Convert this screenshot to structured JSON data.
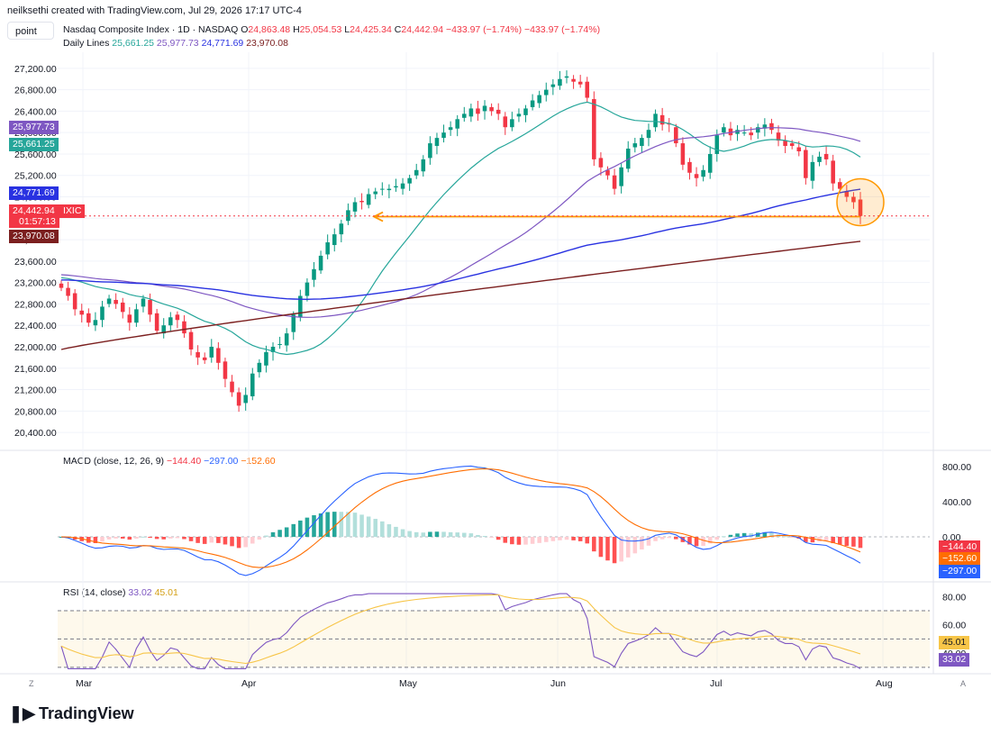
{
  "credit": "neilksethi created with TradingView.com, Jul 29, 2026 17:17 UTC-4",
  "symbol_box": "point",
  "header": {
    "title": "Nasdaq Composite Index · 1D · NASDAQ",
    "ohlc": {
      "o_label": "O",
      "o": "24,863.48",
      "h_label": "H",
      "h": "25,054.53",
      "l_label": "L",
      "l": "24,425.34",
      "c_label": "C",
      "c": "24,442.94",
      "chg": "−433.97 (−1.74%)",
      "chg2": "−433.97 (−1.74%)"
    },
    "lines_label": "Daily Lines",
    "lines_values": [
      "25,661.25",
      "25,977.73",
      "24,771.69",
      "23,970.08"
    ]
  },
  "price_tags": {
    "t1": "25,977.73",
    "t2": "25,661.25",
    "t3": "24,771.69",
    "t4": "24,442.94",
    "t4b": "01:57:13",
    "t4sym": "IXIC",
    "t5": "23,970.08"
  },
  "macd_header": {
    "label": "MACD (close, 12, 26, 9)",
    "v1": "−144.40",
    "v2": "−297.00",
    "v3": "−152.60"
  },
  "macd_tags": {
    "a": "−144.40",
    "b": "−152.60",
    "c": "−297.00"
  },
  "rsi_header": {
    "label": "RSI (14, close)",
    "v1": "33.02",
    "v2": "45.01"
  },
  "rsi_tags": {
    "a": "45.01",
    "b": "33.02"
  },
  "corner_left": "Z",
  "corner_right": "A",
  "logo_text": "TradingView",
  "colors": {
    "up": "#089981",
    "down": "#f23645",
    "ma20": "#26a69a",
    "ma50": "#7e57c2",
    "ma100": "#2932e1",
    "ma200": "#7b1f1f",
    "macd": "#2962ff",
    "signal": "#ff6d00",
    "rsi": "#7e57c2",
    "rsima": "#f7c548",
    "arrow": "#ff9800"
  },
  "chart_data": [
    {
      "type": "candlestick",
      "title": "Nasdaq Composite Index · 1D · NASDAQ",
      "x_tick_labels": [
        "Mar",
        "Apr",
        "May",
        "Jun",
        "Jul",
        "Aug"
      ],
      "y_tick_labels": [
        "27,200.00",
        "26,800.00",
        "26,400.00",
        "26,000.00",
        "25,600.00",
        "25,200.00",
        "24,800.00",
        "24,400.00",
        "24,000.00",
        "23,600.00",
        "23,200.00",
        "22,800.00",
        "22,400.00",
        "22,000.00",
        "21,600.00",
        "21,200.00",
        "20,800.00",
        "20,400.00"
      ],
      "ylim": [
        20200,
        27500
      ],
      "grid": true,
      "candles_close": [
        23100,
        22950,
        22700,
        22600,
        22450,
        22500,
        22750,
        22900,
        22800,
        22650,
        22450,
        22700,
        22900,
        22600,
        22300,
        22400,
        22550,
        22500,
        22250,
        21950,
        21800,
        21750,
        22000,
        21700,
        21400,
        21150,
        20900,
        21100,
        21500,
        21700,
        21900,
        22000,
        22050,
        22250,
        22600,
        22950,
        23200,
        23450,
        23700,
        23950,
        24100,
        24300,
        24550,
        24700,
        24700,
        24850,
        24900,
        24950,
        24950,
        25000,
        25050,
        25150,
        25300,
        25500,
        25800,
        25900,
        26000,
        26100,
        26250,
        26350,
        26450,
        26350,
        26500,
        26400,
        26350,
        26100,
        26250,
        26350,
        26450,
        26600,
        26700,
        26800,
        26900,
        27000,
        27050,
        26950,
        26900,
        26650,
        25500,
        25350,
        25200,
        24950,
        25350,
        25700,
        25800,
        25900,
        26050,
        26350,
        26150,
        26150,
        25800,
        25400,
        25250,
        25150,
        25300,
        25600,
        25950,
        26100,
        25950,
        26050,
        26000,
        25950,
        26100,
        26150,
        26050,
        25850,
        25750,
        25750,
        25650,
        25150,
        25450,
        25550,
        25500,
        25050,
        24950,
        24800,
        24700,
        24442.94
      ],
      "series": [
        {
          "name": "SMA 20",
          "values_end": 25661.25
        },
        {
          "name": "SMA 50",
          "values_end": 25977.73
        },
        {
          "name": "SMA 100",
          "values_end": 24771.69
        },
        {
          "name": "SMA 200",
          "values_end": 23970.08
        }
      ],
      "annotation": "horizontal arrow at about 24,450 plus circle at last bar"
    },
    {
      "type": "line",
      "title": "MACD (close, 12, 26, 9)",
      "y_tick_labels": [
        "800.00",
        "400.00",
        "0.00"
      ],
      "ylim": [
        -450,
        900
      ],
      "series": [
        {
          "name": "MACD",
          "values_last": -297.0
        },
        {
          "name": "Signal",
          "values_last": -152.6
        },
        {
          "name": "Histogram",
          "values_last": -144.4
        }
      ]
    },
    {
      "type": "line",
      "title": "RSI (14, close)",
      "y_tick_labels": [
        "80.00",
        "60.00",
        "40.00"
      ],
      "ylim": [
        28,
        84
      ],
      "bands": [
        70,
        50,
        30
      ],
      "series": [
        {
          "name": "RSI",
          "values_last": 33.02
        },
        {
          "name": "RSI MA",
          "values_last": 45.01
        }
      ]
    }
  ]
}
